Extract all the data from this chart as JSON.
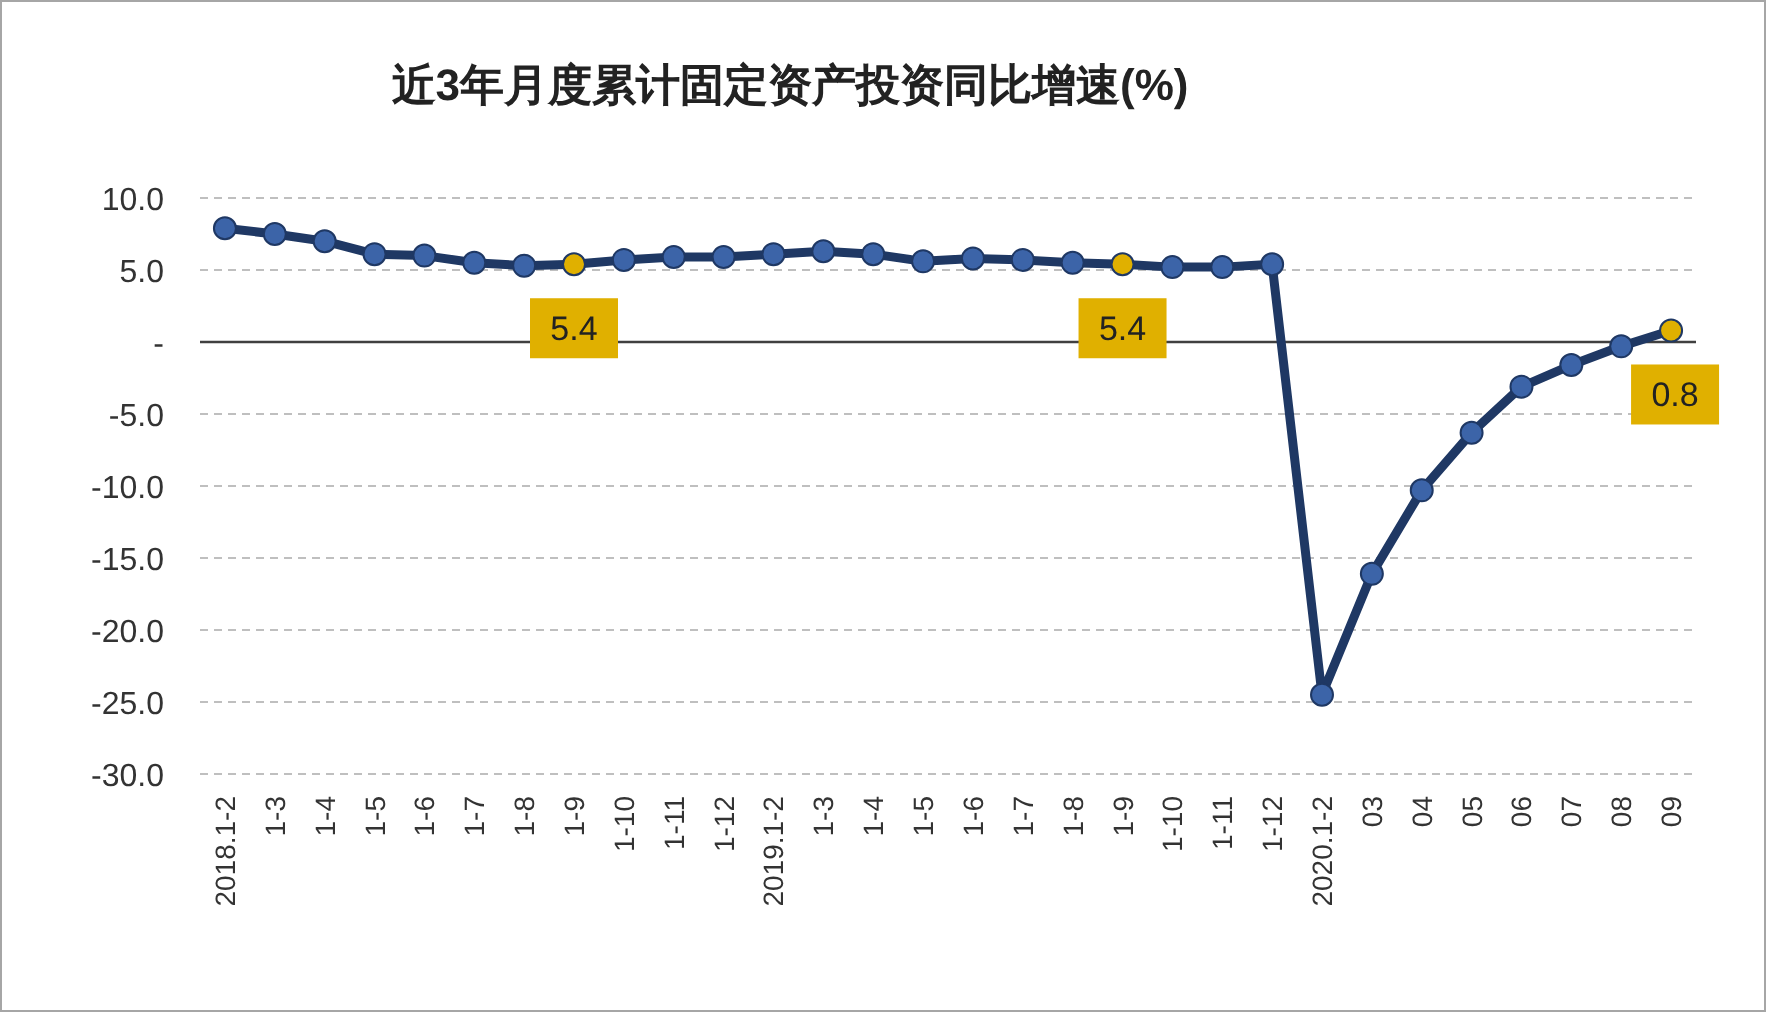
{
  "chart_data": {
    "type": "line",
    "title": "近3年月度累计固定资产投资同比增速(%)",
    "categories": [
      "2018.1-2",
      "1-3",
      "1-4",
      "1-5",
      "1-6",
      "1-7",
      "1-8",
      "1-9",
      "1-10",
      "1-11",
      "1-12",
      "2019.1-2",
      "1-3",
      "1-4",
      "1-5",
      "1-6",
      "1-7",
      "1-8",
      "1-9",
      "1-10",
      "1-11",
      "1-12",
      "2020.1-2",
      "03",
      "04",
      "05",
      "06",
      "07",
      "08",
      "09"
    ],
    "series": [
      {
        "color": "#1f3864",
        "colors": [
          "#3c64a8",
          "#3c64a8",
          "#3c64a8",
          "#3c64a8",
          "#3c64a8",
          "#3c64a8",
          "#3c64a8",
          "#e0b000",
          "#3c64a8",
          "#3c64a8",
          "#3c64a8",
          "#3c64a8",
          "#3c64a8",
          "#3c64a8",
          "#3c64a8",
          "#3c64a8",
          "#3c64a8",
          "#3c64a8",
          "#e0b000",
          "#3c64a8",
          "#3c64a8",
          "#3c64a8",
          "#3c64a8",
          "#3c64a8",
          "#3c64a8",
          "#3c64a8",
          "#3c64a8",
          "#3c64a8",
          "#3c64a8",
          "#e0b000"
        ],
        "values": [
          7.9,
          7.5,
          7.0,
          6.1,
          6.0,
          5.5,
          5.3,
          5.4,
          5.7,
          5.9,
          5.9,
          6.1,
          6.3,
          6.1,
          5.6,
          5.8,
          5.7,
          5.5,
          5.4,
          5.2,
          5.2,
          5.4,
          -24.5,
          -16.1,
          -10.3,
          -6.3,
          -3.1,
          -1.6,
          -0.3,
          0.8
        ],
        "value_labels": [
          null,
          null,
          null,
          null,
          null,
          null,
          null,
          "5.4",
          null,
          null,
          null,
          null,
          null,
          null,
          null,
          null,
          null,
          null,
          "5.4",
          null,
          null,
          null,
          null,
          null,
          null,
          null,
          null,
          null,
          null,
          "0.8"
        ]
      }
    ],
    "ylim": [
      -30,
      10
    ],
    "yticks": [
      {
        "value": 10,
        "label": "10.0"
      },
      {
        "value": 5,
        "label": "5.0"
      },
      {
        "value": 0,
        "label": "-"
      },
      {
        "value": -5,
        "label": "-5.0"
      },
      {
        "value": -10,
        "label": "-10.0"
      },
      {
        "value": -15,
        "label": "-15.0"
      },
      {
        "value": -20,
        "label": "-20.0"
      },
      {
        "value": -25,
        "label": "-25.0"
      },
      {
        "value": -30,
        "label": "-30.0"
      }
    ],
    "grid": "y",
    "marker": "circle",
    "line_style": "solid"
  }
}
